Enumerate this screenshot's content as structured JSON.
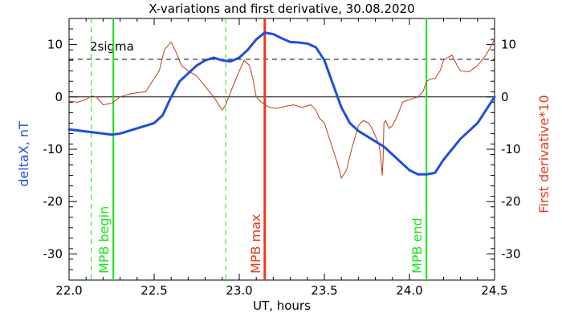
{
  "chart_data": {
    "type": "line",
    "title": "X-variations and first derivative, 30.08.2020",
    "xlabel": "UT, hours",
    "ylabel_left": "deltaX, nT",
    "ylabel_right": "First derivative*10",
    "xlim": [
      22.0,
      24.5
    ],
    "ylim": [
      -35,
      15
    ],
    "x_ticks": [
      22.0,
      22.5,
      23.0,
      23.5,
      24.0,
      24.5
    ],
    "x_tick_labels": [
      "22.0",
      "22.5",
      "23.0",
      "23.5",
      "24.0",
      "24.5"
    ],
    "y_ticks": [
      -30,
      -20,
      -10,
      0,
      10
    ],
    "y_tick_labels": [
      "-30",
      "-20",
      "-10",
      "0",
      "10"
    ],
    "colors": {
      "deltaX": "#1f4fd8",
      "derivative": "#c0391b",
      "mpb": "#19e619",
      "dashed_green": "#19e619",
      "mpb_max": "#e8391e",
      "axes": "#000000"
    },
    "series": [
      {
        "x": [
          22.0,
          22.05,
          22.1,
          22.15,
          22.2,
          22.25,
          22.3,
          22.35,
          22.4,
          22.45,
          22.5,
          22.55,
          22.6,
          22.65,
          22.7,
          22.75,
          22.8,
          22.85,
          22.9,
          22.95,
          23.0,
          23.05,
          23.1,
          23.15,
          23.2,
          23.25,
          23.3,
          23.35,
          23.4,
          23.45,
          23.5,
          23.55,
          23.6,
          23.65,
          23.7,
          23.75,
          23.8,
          23.85,
          23.9,
          23.95,
          24.0,
          24.05,
          24.1,
          24.15,
          24.2,
          24.25,
          24.3,
          24.35,
          24.4,
          24.45,
          24.5
        ],
        "values": [
          -6.2,
          -6.4,
          -6.6,
          -6.8,
          -7.0,
          -7.2,
          -7.0,
          -6.5,
          -6.0,
          -5.5,
          -5.0,
          -3.5,
          0.0,
          3.0,
          4.5,
          6.0,
          7.0,
          7.5,
          7.0,
          6.8,
          7.5,
          9.0,
          11.0,
          12.3,
          12.0,
          11.2,
          10.5,
          10.4,
          10.2,
          9.5,
          7.0,
          2.5,
          -2.0,
          -5.0,
          -6.5,
          -7.5,
          -8.5,
          -9.5,
          -11.0,
          -12.5,
          -14.0,
          -14.8,
          -14.8,
          -14.5,
          -12.0,
          -10.0,
          -8.0,
          -6.5,
          -5.0,
          -2.5,
          0.0
        ]
      },
      {
        "x": [
          22.0,
          22.05,
          22.08,
          22.1,
          22.13,
          22.16,
          22.2,
          22.25,
          22.3,
          22.35,
          22.4,
          22.45,
          22.5,
          22.53,
          22.56,
          22.6,
          22.63,
          22.66,
          22.7,
          22.75,
          22.8,
          22.85,
          22.88,
          22.9,
          22.92,
          22.95,
          23.0,
          23.03,
          23.06,
          23.08,
          23.1,
          23.13,
          23.15,
          23.18,
          23.22,
          23.27,
          23.32,
          23.37,
          23.42,
          23.45,
          23.47,
          23.5,
          23.55,
          23.58,
          23.6,
          23.63,
          23.66,
          23.7,
          23.73,
          23.76,
          23.78,
          23.8,
          23.82,
          23.83,
          23.84,
          23.845,
          23.85,
          23.86,
          23.88,
          23.9,
          23.93,
          23.96,
          24.0,
          24.05,
          24.08,
          24.1,
          24.13,
          24.15,
          24.18,
          24.2,
          24.25,
          24.28,
          24.3,
          24.35,
          24.38,
          24.4,
          24.45,
          24.5
        ],
        "values": [
          -0.8,
          -1.0,
          -0.7,
          -0.5,
          0.2,
          0.0,
          -1.5,
          -1.2,
          0.0,
          0.5,
          0.8,
          1.0,
          3.5,
          5.0,
          9.0,
          10.5,
          8.5,
          6.0,
          5.0,
          4.0,
          2.0,
          0.0,
          -1.5,
          -2.5,
          -1.5,
          1.0,
          5.0,
          7.0,
          6.0,
          3.5,
          0.0,
          -1.0,
          -1.5,
          -2.0,
          -2.2,
          -1.8,
          -1.5,
          -2.0,
          -1.5,
          -2.5,
          -4.0,
          -5.0,
          -10.0,
          -13.0,
          -15.5,
          -14.0,
          -10.0,
          -5.5,
          -4.5,
          -5.0,
          -6.0,
          -7.5,
          -9.0,
          -11.0,
          -15.0,
          -12.0,
          -5.0,
          -4.5,
          -6.0,
          -5.5,
          -3.5,
          -1.0,
          -0.5,
          0.0,
          1.0,
          3.0,
          3.5,
          3.5,
          5.0,
          7.0,
          8.0,
          6.0,
          5.0,
          4.8,
          5.5,
          6.0,
          8.0,
          11.0
        ]
      }
    ],
    "threshold": {
      "label": "2sigma",
      "value": 7.2
    },
    "vlines": [
      {
        "x": 22.13,
        "style": "dashed",
        "label": ""
      },
      {
        "x": 22.26,
        "style": "solid",
        "label": "MPB begin"
      },
      {
        "x": 22.92,
        "style": "dashed",
        "label": ""
      },
      {
        "x": 23.15,
        "style": "solid-red",
        "label": "MPB max"
      },
      {
        "x": 24.1,
        "style": "solid",
        "label": "MPB end"
      }
    ]
  }
}
